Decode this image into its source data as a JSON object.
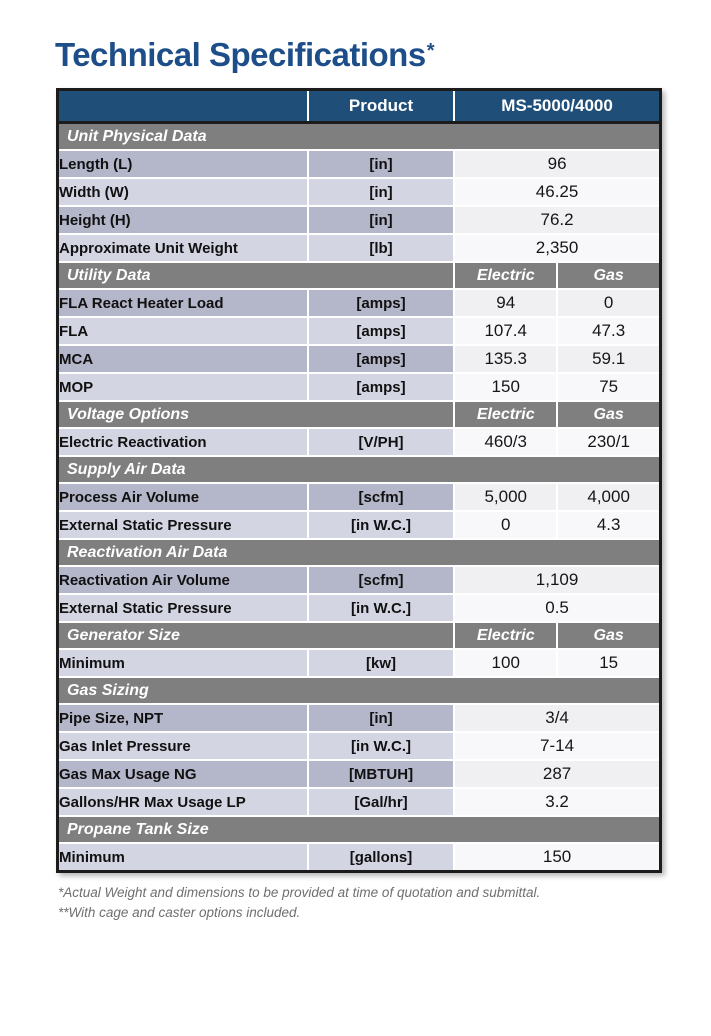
{
  "page": {
    "title": "Technical Specifications",
    "title_asterisk": "*"
  },
  "table": {
    "header": {
      "blank": "",
      "product": "Product",
      "model": "MS-5000/4000"
    },
    "subheaders": {
      "electric": "Electric",
      "gas": "Gas"
    },
    "sections": [
      {
        "title": "Unit Physical Data",
        "subheader": false,
        "rows": [
          {
            "label": "Length (L)",
            "unit": "[in]",
            "values": [
              "96"
            ]
          },
          {
            "label": "Width (W)",
            "unit": "[in]",
            "values": [
              "46.25"
            ]
          },
          {
            "label": "Height (H)",
            "unit": "[in]",
            "values": [
              "76.2"
            ]
          },
          {
            "label": "Approximate Unit Weight",
            "unit": "[lb]",
            "values": [
              "2,350"
            ]
          }
        ]
      },
      {
        "title": "Utility Data",
        "subheader": true,
        "rows": [
          {
            "label": "FLA React Heater Load",
            "unit": "[amps]",
            "values": [
              "94",
              "0"
            ]
          },
          {
            "label": "FLA",
            "unit": "[amps]",
            "values": [
              "107.4",
              "47.3"
            ]
          },
          {
            "label": "MCA",
            "unit": "[amps]",
            "values": [
              "135.3",
              "59.1"
            ]
          },
          {
            "label": "MOP",
            "unit": "[amps]",
            "values": [
              "150",
              "75"
            ]
          }
        ]
      },
      {
        "title": "Voltage Options",
        "subheader": true,
        "rows": [
          {
            "label": "Electric Reactivation",
            "unit": "[V/PH]",
            "values": [
              "460/3",
              "230/1"
            ]
          }
        ]
      },
      {
        "title": "Supply Air Data",
        "subheader": false,
        "rows": [
          {
            "label": "Process Air Volume",
            "unit": "[scfm]",
            "values": [
              "5,000",
              "4,000"
            ]
          },
          {
            "label": "External Static Pressure",
            "unit": "[in W.C.]",
            "values": [
              "0",
              "4.3"
            ]
          }
        ]
      },
      {
        "title": "Reactivation Air Data",
        "subheader": false,
        "rows": [
          {
            "label": "Reactivation Air Volume",
            "unit": "[scfm]",
            "values": [
              "1,109"
            ]
          },
          {
            "label": "External Static Pressure",
            "unit": "[in W.C.]",
            "values": [
              "0.5"
            ]
          }
        ]
      },
      {
        "title": "Generator Size",
        "subheader": true,
        "rows": [
          {
            "label": "Minimum",
            "unit": "[kw]",
            "values": [
              "100",
              "15"
            ]
          }
        ]
      },
      {
        "title": "Gas Sizing",
        "subheader": false,
        "rows": [
          {
            "label": "Pipe Size, NPT",
            "unit": "[in]",
            "values": [
              "3/4"
            ]
          },
          {
            "label": "Gas Inlet Pressure",
            "unit": "[in W.C.]",
            "values": [
              "7-14"
            ]
          },
          {
            "label": "Gas Max Usage NG",
            "unit": "[MBTUH]",
            "values": [
              "287"
            ]
          },
          {
            "label": "Gallons/HR Max Usage LP",
            "unit": "[Gal/hr]",
            "values": [
              "3.2"
            ]
          }
        ]
      },
      {
        "title": "Propane Tank Size",
        "subheader": false,
        "rows": [
          {
            "label": "Minimum",
            "unit": "[gallons]",
            "values": [
              "150"
            ]
          }
        ]
      }
    ]
  },
  "footnotes": [
    "*Actual Weight and dimensions to be provided at time of quotation and submittal.",
    "**With cage and caster options included."
  ],
  "colors": {
    "title_blue": "#1d4e89",
    "header_navy": "#1f4e79",
    "section_gray": "#7f7f7f",
    "row_dark": "#b4b6c9",
    "row_light": "#d4d5e3",
    "value_bg": "#f3f3f6",
    "border_black": "#1c1c1c",
    "footnote_gray": "#6f6f6f"
  }
}
